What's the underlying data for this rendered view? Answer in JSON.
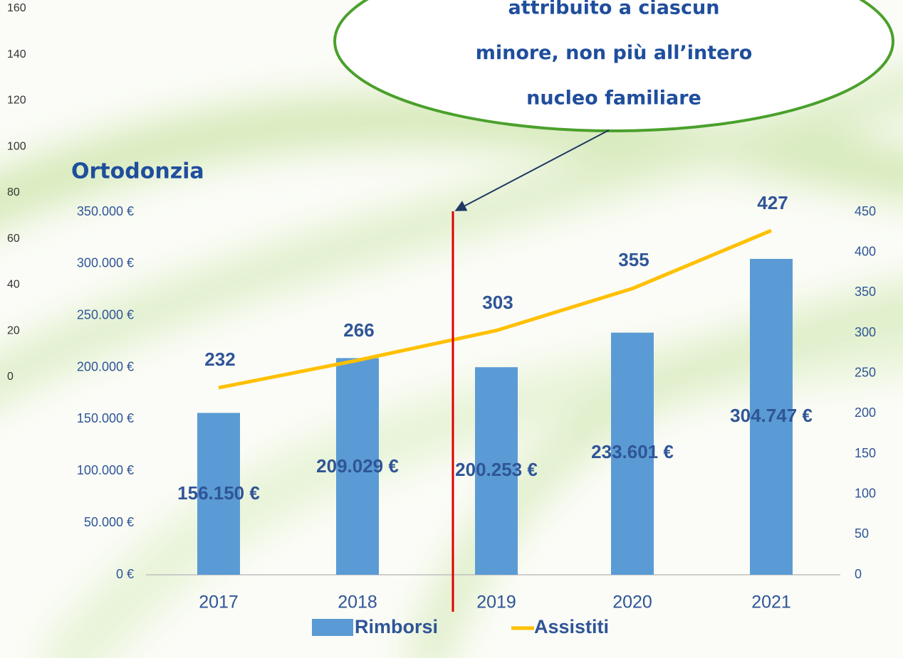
{
  "chart_data": {
    "type": "bar-line",
    "title": "Ortodonzia",
    "annotation": [
      "attribuito a ciascun",
      "minore, non più all’intero",
      "nucleo familiare"
    ],
    "categories": [
      "2017",
      "2018",
      "2019",
      "2020",
      "2021"
    ],
    "series": [
      {
        "name": "Rimborsi",
        "type": "bar",
        "color": "#5b9bd5",
        "values": [
          156150,
          209029,
          200253,
          233601,
          304747
        ],
        "value_labels": [
          "156.150 €",
          "209.029 €",
          "200.253 €",
          "233.601 €",
          "304.747 €"
        ]
      },
      {
        "name": "Assistiti",
        "type": "line",
        "axis": "y2",
        "color": "#ffc000",
        "values": [
          232,
          266,
          303,
          355,
          427
        ]
      }
    ],
    "ylim": [
      0,
      350000
    ],
    "yticks": [
      {
        "value": 0,
        "label": "0 €"
      },
      {
        "value": 50000,
        "label": "50.000 €"
      },
      {
        "value": 100000,
        "label": "100.000 €"
      },
      {
        "value": 150000,
        "label": "150.000 €"
      },
      {
        "value": 200000,
        "label": "200.000 €"
      },
      {
        "value": 250000,
        "label": "250.000 €"
      },
      {
        "value": 300000,
        "label": "300.000 €"
      },
      {
        "value": 350000,
        "label": "350.000 €"
      }
    ],
    "y2lim": [
      0,
      450
    ],
    "y2ticks": [
      0,
      50,
      100,
      150,
      200,
      250,
      300,
      350,
      400,
      450
    ],
    "side_ylim": [
      0,
      160
    ],
    "side_ticks": [
      0,
      20,
      40,
      60,
      80,
      100,
      120,
      140,
      160
    ],
    "legend": "bottom"
  }
}
